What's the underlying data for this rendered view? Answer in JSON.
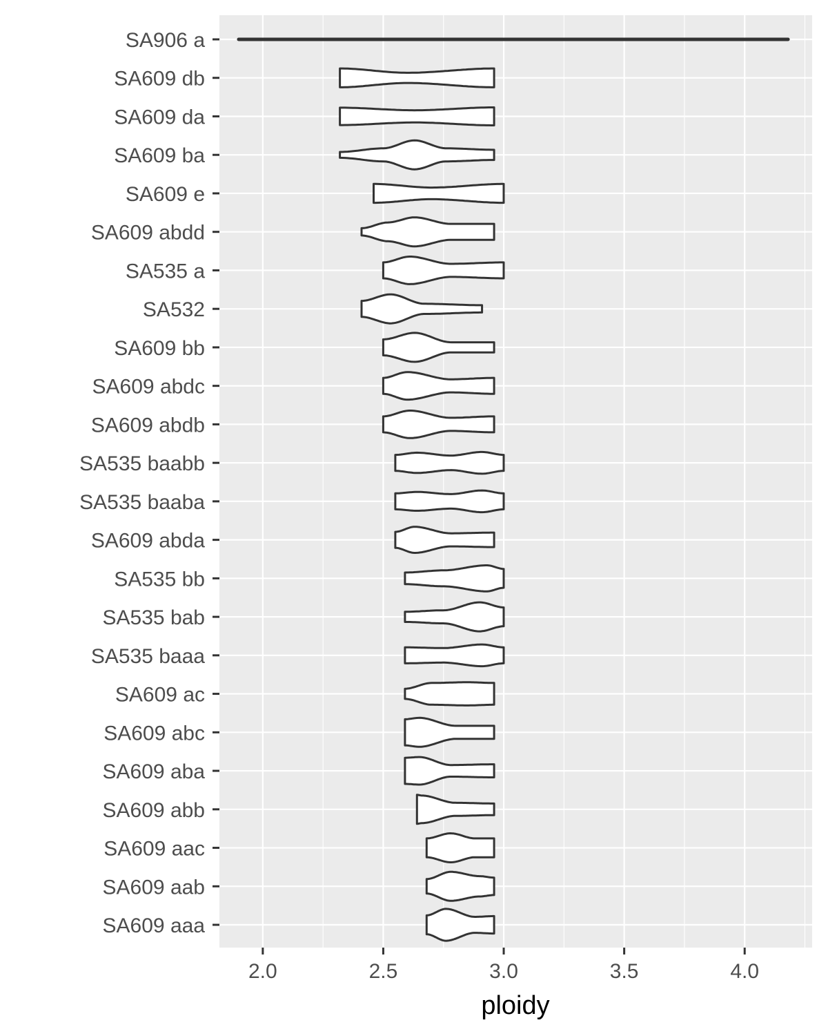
{
  "chart_data": {
    "type": "violin",
    "orientation": "horizontal",
    "title": "",
    "xlabel": "ploidy",
    "ylabel": "",
    "xlim": [
      1.82,
      4.28
    ],
    "x_ticks": [
      2.0,
      2.5,
      3.0,
      3.5,
      4.0
    ],
    "x_tick_labels": [
      "2.0",
      "2.5",
      "3.0",
      "3.5",
      "4.0"
    ],
    "grid": true,
    "legend": "none",
    "colors": {
      "panel": "#ebebeb",
      "grid": "#ffffff",
      "violin_fill": "#ffffff",
      "violin_stroke": "#333333",
      "tick": "#333333"
    },
    "categories": [
      "SA906 a",
      "SA609 db",
      "SA609 da",
      "SA609 ba",
      "SA609 e",
      "SA609 abdd",
      "SA535 a",
      "SA532 ",
      "SA609 bb",
      "SA609 abdc",
      "SA609 abdb",
      "SA535 baabb",
      "SA535 baaba",
      "SA609 abda",
      "SA535 bb",
      "SA535 bab",
      "SA535 baaa",
      "SA609 ac",
      "SA609 abc",
      "SA609 aba",
      "SA609 abb",
      "SA609 aac",
      "SA609 aab",
      "SA609 aaa"
    ],
    "violins": [
      {
        "min": 1.9,
        "max": 4.18,
        "density": [
          [
            1.9,
            0.0
          ],
          [
            4.18,
            0.0
          ]
        ]
      },
      {
        "min": 2.32,
        "max": 2.96,
        "density": [
          [
            2.32,
            0.65
          ],
          [
            2.6,
            0.35
          ],
          [
            2.96,
            0.65
          ]
        ]
      },
      {
        "min": 2.32,
        "max": 2.96,
        "density": [
          [
            2.32,
            0.6
          ],
          [
            2.63,
            0.42
          ],
          [
            2.96,
            0.62
          ]
        ]
      },
      {
        "min": 2.32,
        "max": 2.96,
        "density": [
          [
            2.32,
            0.2
          ],
          [
            2.5,
            0.45
          ],
          [
            2.63,
            1.0
          ],
          [
            2.76,
            0.45
          ],
          [
            2.96,
            0.35
          ]
        ]
      },
      {
        "min": 2.46,
        "max": 3.0,
        "density": [
          [
            2.46,
            0.65
          ],
          [
            2.7,
            0.4
          ],
          [
            3.0,
            0.65
          ]
        ]
      },
      {
        "min": 2.41,
        "max": 2.96,
        "density": [
          [
            2.41,
            0.25
          ],
          [
            2.52,
            0.65
          ],
          [
            2.63,
            1.0
          ],
          [
            2.78,
            0.55
          ],
          [
            2.96,
            0.55
          ]
        ]
      },
      {
        "min": 2.5,
        "max": 3.0,
        "density": [
          [
            2.5,
            0.55
          ],
          [
            2.61,
            0.95
          ],
          [
            2.78,
            0.45
          ],
          [
            3.0,
            0.55
          ]
        ]
      },
      {
        "min": 2.41,
        "max": 2.91,
        "density": [
          [
            2.41,
            0.55
          ],
          [
            2.53,
            1.0
          ],
          [
            2.67,
            0.35
          ],
          [
            2.91,
            0.25
          ]
        ]
      },
      {
        "min": 2.5,
        "max": 2.96,
        "density": [
          [
            2.5,
            0.55
          ],
          [
            2.63,
            1.0
          ],
          [
            2.78,
            0.35
          ],
          [
            2.96,
            0.35
          ]
        ]
      },
      {
        "min": 2.5,
        "max": 2.96,
        "density": [
          [
            2.5,
            0.55
          ],
          [
            2.6,
            0.95
          ],
          [
            2.78,
            0.45
          ],
          [
            2.96,
            0.55
          ]
        ]
      },
      {
        "min": 2.5,
        "max": 2.96,
        "density": [
          [
            2.5,
            0.55
          ],
          [
            2.61,
            0.95
          ],
          [
            2.78,
            0.45
          ],
          [
            2.96,
            0.55
          ]
        ]
      },
      {
        "min": 2.55,
        "max": 3.0,
        "density": [
          [
            2.55,
            0.55
          ],
          [
            2.64,
            0.7
          ],
          [
            2.78,
            0.5
          ],
          [
            2.91,
            0.75
          ],
          [
            3.0,
            0.55
          ]
        ]
      },
      {
        "min": 2.55,
        "max": 3.0,
        "density": [
          [
            2.55,
            0.55
          ],
          [
            2.64,
            0.65
          ],
          [
            2.78,
            0.5
          ],
          [
            2.91,
            0.75
          ],
          [
            3.0,
            0.55
          ]
        ]
      },
      {
        "min": 2.55,
        "max": 2.96,
        "density": [
          [
            2.55,
            0.55
          ],
          [
            2.63,
            0.9
          ],
          [
            2.78,
            0.45
          ],
          [
            2.96,
            0.5
          ]
        ]
      },
      {
        "min": 2.59,
        "max": 3.0,
        "density": [
          [
            2.59,
            0.4
          ],
          [
            2.75,
            0.55
          ],
          [
            2.93,
            0.9
          ],
          [
            3.0,
            0.65
          ]
        ]
      },
      {
        "min": 2.59,
        "max": 3.0,
        "density": [
          [
            2.59,
            0.35
          ],
          [
            2.75,
            0.45
          ],
          [
            2.9,
            1.0
          ],
          [
            3.0,
            0.65
          ]
        ]
      },
      {
        "min": 2.59,
        "max": 3.0,
        "density": [
          [
            2.59,
            0.55
          ],
          [
            2.75,
            0.5
          ],
          [
            2.91,
            0.75
          ],
          [
            3.0,
            0.55
          ]
        ]
      },
      {
        "min": 2.59,
        "max": 2.96,
        "density": [
          [
            2.59,
            0.35
          ],
          [
            2.7,
            0.75
          ],
          [
            2.85,
            0.8
          ],
          [
            2.96,
            0.75
          ]
        ]
      },
      {
        "min": 2.59,
        "max": 2.96,
        "density": [
          [
            2.59,
            0.9
          ],
          [
            2.65,
            1.0
          ],
          [
            2.8,
            0.45
          ],
          [
            2.96,
            0.45
          ]
        ]
      },
      {
        "min": 2.59,
        "max": 2.96,
        "density": [
          [
            2.59,
            0.9
          ],
          [
            2.65,
            0.95
          ],
          [
            2.78,
            0.4
          ],
          [
            2.96,
            0.45
          ]
        ]
      },
      {
        "min": 2.64,
        "max": 2.96,
        "density": [
          [
            2.64,
            1.0
          ],
          [
            2.66,
            0.95
          ],
          [
            2.8,
            0.45
          ],
          [
            2.96,
            0.4
          ]
        ]
      },
      {
        "min": 2.68,
        "max": 2.96,
        "density": [
          [
            2.68,
            0.65
          ],
          [
            2.78,
            1.0
          ],
          [
            2.88,
            0.65
          ],
          [
            2.96,
            0.65
          ]
        ]
      },
      {
        "min": 2.68,
        "max": 2.96,
        "density": [
          [
            2.68,
            0.5
          ],
          [
            2.78,
            1.0
          ],
          [
            2.9,
            0.7
          ],
          [
            2.96,
            0.6
          ]
        ]
      },
      {
        "min": 2.68,
        "max": 2.96,
        "density": [
          [
            2.68,
            0.65
          ],
          [
            2.76,
            1.1
          ],
          [
            2.88,
            0.55
          ],
          [
            2.96,
            0.6
          ]
        ]
      }
    ]
  }
}
